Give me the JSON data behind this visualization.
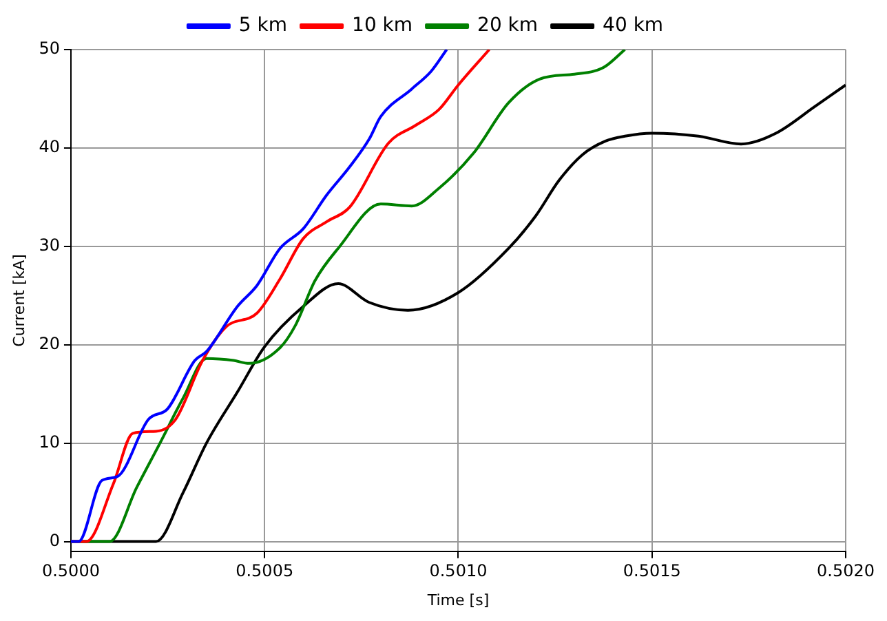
{
  "chart_data": {
    "type": "line",
    "xlabel": "Time [s]",
    "ylabel": "Current [kA]",
    "xlim": [
      0.5,
      0.502
    ],
    "ylim": [
      -1,
      50
    ],
    "xticks": [
      {
        "value": 0.5,
        "label": "0.5000"
      },
      {
        "value": 0.5005,
        "label": "0.5005"
      },
      {
        "value": 0.501,
        "label": "0.5010"
      },
      {
        "value": 0.5015,
        "label": "0.5015"
      },
      {
        "value": 0.502,
        "label": "0.5020"
      }
    ],
    "yticks": [
      0,
      10,
      20,
      30,
      40,
      50
    ],
    "grid": true,
    "legend": "top",
    "marker": "none",
    "line_style": "solid",
    "series": [
      {
        "name": "5 km",
        "color": "#0000ff",
        "x": [
          0.5,
          0.50002,
          0.50008,
          0.50012,
          0.5002,
          0.50025,
          0.50032,
          0.50035,
          0.50043,
          0.50048,
          0.50054,
          0.5006,
          0.50066,
          0.50072,
          0.50077,
          0.5008,
          0.50088,
          0.50093,
          0.50097
        ],
        "values": [
          0,
          0,
          6.2,
          6.6,
          12.4,
          13.5,
          18.4,
          19.3,
          23.9,
          26,
          29.8,
          31.8,
          35.2,
          38.1,
          40.9,
          43.2,
          46,
          47.8,
          50
        ]
      },
      {
        "name": "10 km",
        "color": "#ff0000",
        "x": [
          0.5,
          0.50004,
          0.50011,
          0.50016,
          0.50022,
          0.50027,
          0.50034,
          0.5004,
          0.50048,
          0.50054,
          0.5006,
          0.50066,
          0.50072,
          0.50082,
          0.50089,
          0.50095,
          0.501,
          0.50108
        ],
        "values": [
          0,
          0,
          5.9,
          11,
          11.2,
          12.4,
          18.4,
          21.8,
          23.2,
          26.7,
          30.8,
          32.5,
          34,
          40.5,
          42.3,
          43.9,
          46.4,
          50
        ]
      },
      {
        "name": "20 km",
        "color": "#008000",
        "x": [
          0.5,
          0.5001,
          0.50017,
          0.50023,
          0.50029,
          0.50035,
          0.50042,
          0.50046,
          0.50054,
          0.50058,
          0.50063,
          0.50069,
          0.5008,
          0.50088,
          0.50095,
          0.50104,
          0.50113,
          0.50121,
          0.5013,
          0.50135,
          0.50138,
          0.50143
        ],
        "values": [
          0,
          0,
          5.5,
          10,
          14.6,
          18.6,
          18.4,
          18.1,
          19.7,
          22,
          26.5,
          29.8,
          34.3,
          34.1,
          35.9,
          39.5,
          44.6,
          47,
          47.5,
          47.8,
          48.3,
          50
        ]
      },
      {
        "name": "40 km",
        "color": "#000000",
        "x": [
          0.5,
          0.50022,
          0.50029,
          0.50035,
          0.50043,
          0.5005,
          0.5006,
          0.50069,
          0.50077,
          0.50087,
          0.501,
          0.50113,
          0.5012,
          0.50126,
          0.50132,
          0.50138,
          0.50143,
          0.5015,
          0.50162,
          0.50173,
          0.50182,
          0.50192,
          0.502
        ],
        "values": [
          0,
          0,
          5,
          10,
          15.2,
          19.8,
          23.9,
          26.2,
          24.3,
          23.5,
          25.3,
          29.8,
          33.1,
          36.7,
          39.3,
          40.7,
          41.2,
          41.5,
          41.2,
          40.4,
          41.5,
          44.2,
          46.4
        ]
      }
    ]
  }
}
